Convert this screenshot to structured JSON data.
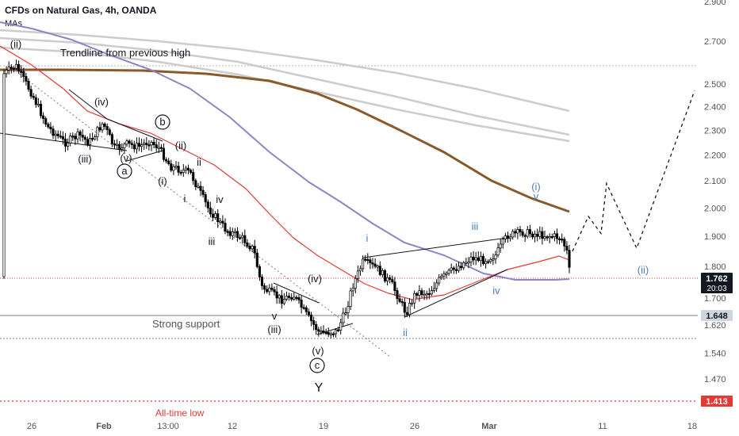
{
  "header": {
    "symbol": "CFDs on Natural Gas, 4h, OANDA",
    "indicator": "MAs"
  },
  "colors": {
    "up_candle": "#ffffff",
    "down_candle": "#000000",
    "ema_red": "#e53935",
    "ma_blue": "#8c86c7",
    "ma_brown": "#8b5a2b",
    "ma_grey": "#cccccc",
    "label_blue": "#4a7fc1",
    "alltime_low": "#e53935"
  },
  "chart_data": {
    "type": "candlestick",
    "y_axis": {
      "ticks": [
        "2.900",
        "2.700",
        "2.500",
        "2.400",
        "2.300",
        "2.200",
        "2.100",
        "2.000",
        "1.900",
        "1.800",
        "1.700",
        "1.620",
        "1.540",
        "1.470"
      ],
      "scale": "log",
      "ylim": [
        1.38,
        2.95
      ]
    },
    "x_axis": {
      "ticks": [
        "26",
        "Feb",
        "13:00",
        "12",
        "19",
        "26",
        "Mar",
        "11",
        "18"
      ]
    },
    "price_labels": [
      {
        "value": "1.762",
        "sub": "20:03",
        "style": "current"
      },
      {
        "value": "1.648",
        "style": "support"
      },
      {
        "value": "1.413",
        "style": "alltime-low"
      }
    ],
    "annotations": {
      "trendline": "Trendline from previous high",
      "support": "Strong support",
      "alltime_low": "All-time low"
    },
    "wave_labels": [
      {
        "text": "(ii)",
        "color": "black"
      },
      {
        "text": "(iv)",
        "color": "black"
      },
      {
        "text": "(iii)",
        "color": "black"
      },
      {
        "text": "(v)",
        "color": "black"
      },
      {
        "text": "a",
        "color": "black",
        "circled": true
      },
      {
        "text": "b",
        "color": "black",
        "circled": true
      },
      {
        "text": "(ii)",
        "color": "black"
      },
      {
        "text": "(i)",
        "color": "black"
      },
      {
        "text": "i",
        "color": "black"
      },
      {
        "text": "ii",
        "color": "black"
      },
      {
        "text": "iii",
        "color": "black"
      },
      {
        "text": "iv",
        "color": "black"
      },
      {
        "text": "v",
        "color": "black"
      },
      {
        "text": "(iii)",
        "color": "black"
      },
      {
        "text": "(iv)",
        "color": "black"
      },
      {
        "text": "(v)",
        "color": "black"
      },
      {
        "text": "c",
        "color": "black",
        "circled": true
      },
      {
        "text": "Y",
        "color": "black"
      },
      {
        "text": "i",
        "color": "blue"
      },
      {
        "text": "ii",
        "color": "blue"
      },
      {
        "text": "iii",
        "color": "blue"
      },
      {
        "text": "iv",
        "color": "blue"
      },
      {
        "text": "v",
        "color": "blue"
      },
      {
        "text": "(i)",
        "color": "blue"
      },
      {
        "text": "(ii)",
        "color": "blue"
      }
    ],
    "projection": [
      1.85,
      1.97,
      1.91,
      2.09,
      1.86,
      2.47
    ]
  }
}
